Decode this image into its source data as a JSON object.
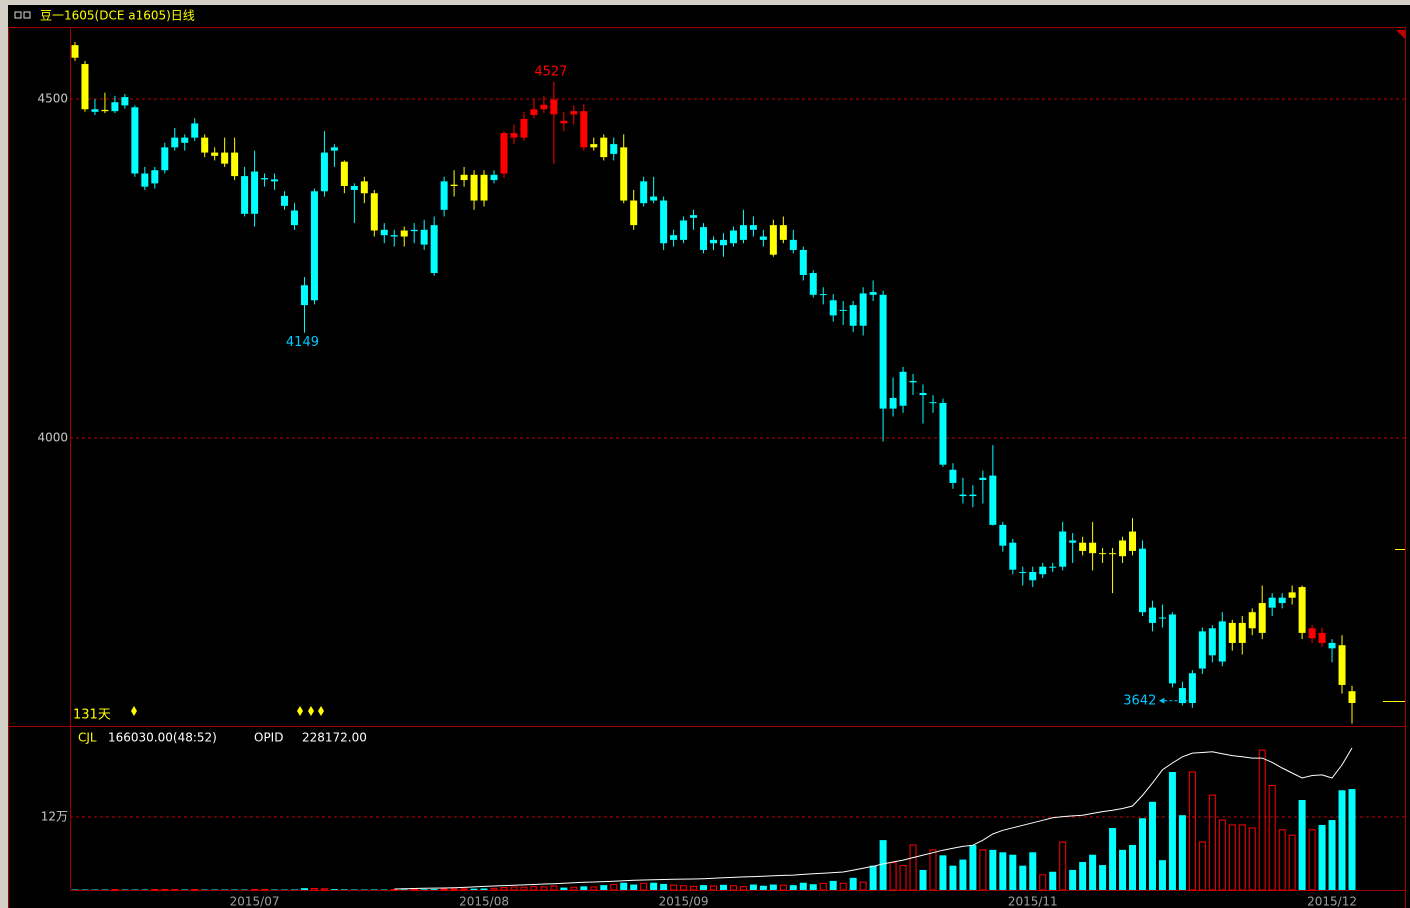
{
  "chart_data": {
    "type": "candlestick",
    "title": "豆一1605(DCE a1605)日线",
    "log_scale": true,
    "grid": true,
    "grid_color": "#c00000",
    "ylim": [
      3619,
      4614
    ],
    "yticks": [
      4000,
      4500
    ],
    "categories": [
      null,
      null,
      null,
      null,
      null,
      null,
      null,
      null,
      null,
      null,
      null,
      null,
      null,
      null,
      null,
      null,
      null,
      null,
      "2015/07",
      null,
      null,
      null,
      null,
      null,
      null,
      null,
      null,
      null,
      null,
      null,
      null,
      null,
      null,
      null,
      null,
      null,
      null,
      null,
      null,
      null,
      null,
      "2015/08",
      null,
      null,
      null,
      null,
      null,
      null,
      null,
      null,
      null,
      null,
      null,
      null,
      null,
      null,
      null,
      null,
      null,
      null,
      null,
      "2015/09",
      null,
      null,
      null,
      null,
      null,
      null,
      null,
      null,
      null,
      null,
      null,
      null,
      null,
      null,
      null,
      null,
      null,
      null,
      null,
      null,
      null,
      null,
      null,
      null,
      null,
      null,
      null,
      null,
      null,
      null,
      null,
      null,
      null,
      null,
      "2015/11",
      null,
      null,
      null,
      null,
      null,
      null,
      null,
      null,
      null,
      null,
      null,
      null,
      null,
      null,
      null,
      null,
      null,
      null,
      null,
      null,
      null,
      null,
      null,
      null,
      null,
      null,
      null,
      null,
      null,
      "2015/12"
    ],
    "candles": [
      [
        4585,
        4590,
        4560,
        4565
      ],
      [
        4555,
        4560,
        4480,
        4484
      ],
      [
        4484,
        4500,
        4475,
        4480
      ],
      [
        4483,
        4510,
        4478,
        4481
      ],
      [
        4481,
        4505,
        4478,
        4495
      ],
      [
        4503,
        4508,
        4485,
        4490
      ],
      [
        4487,
        4490,
        4380,
        4385
      ],
      [
        4385,
        4395,
        4360,
        4365
      ],
      [
        4370,
        4395,
        4362,
        4390
      ],
      [
        4390,
        4432,
        4385,
        4425
      ],
      [
        4425,
        4455,
        4420,
        4440
      ],
      [
        4440,
        4445,
        4420,
        4432
      ],
      [
        4440,
        4470,
        4435,
        4462
      ],
      [
        4440,
        4445,
        4410,
        4417
      ],
      [
        4417,
        4425,
        4405,
        4412
      ],
      [
        4417,
        4440,
        4395,
        4400
      ],
      [
        4417,
        4440,
        4375,
        4381
      ],
      [
        4381,
        4395,
        4320,
        4324
      ],
      [
        4324,
        4420,
        4305,
        4388
      ],
      [
        4376,
        4385,
        4365,
        4378
      ],
      [
        4376,
        4385,
        4360,
        4373
      ],
      [
        4351,
        4358,
        4330,
        4336
      ],
      [
        4329,
        4340,
        4300,
        4307
      ],
      [
        4218,
        4230,
        4149,
        4189
      ],
      [
        4196,
        4362,
        4190,
        4358
      ],
      [
        4358,
        4450,
        4350,
        4417
      ],
      [
        4425,
        4430,
        4395,
        4420
      ],
      [
        4403,
        4405,
        4355,
        4366
      ],
      [
        4366,
        4370,
        4310,
        4360
      ],
      [
        4373,
        4380,
        4340,
        4355
      ],
      [
        4355,
        4360,
        4290,
        4299
      ],
      [
        4300,
        4310,
        4280,
        4292
      ],
      [
        4290,
        4300,
        4275,
        4292
      ],
      [
        4299,
        4305,
        4275,
        4290
      ],
      [
        4298,
        4310,
        4280,
        4300
      ],
      [
        4300,
        4315,
        4270,
        4278
      ],
      [
        4307,
        4320,
        4232,
        4236
      ],
      [
        4330,
        4380,
        4320,
        4373
      ],
      [
        4366,
        4390,
        4350,
        4368
      ],
      [
        4375,
        4395,
        4365,
        4383
      ],
      [
        4383,
        4390,
        4330,
        4344
      ],
      [
        4383,
        4390,
        4335,
        4344
      ],
      [
        4375,
        4390,
        4370,
        4383
      ],
      [
        4385,
        4450,
        4378,
        4447
      ],
      [
        4440,
        4460,
        4430,
        4447
      ],
      [
        4440,
        4480,
        4435,
        4469
      ],
      [
        4475,
        4500,
        4470,
        4484
      ],
      [
        4484,
        4505,
        4478,
        4491
      ],
      [
        4476,
        4527,
        4400,
        4499
      ],
      [
        4466,
        4480,
        4450,
        4462
      ],
      [
        4476,
        4490,
        4460,
        4481
      ],
      [
        4481,
        4492,
        4420,
        4425
      ],
      [
        4425,
        4440,
        4420,
        4430
      ],
      [
        4440,
        4445,
        4405,
        4410
      ],
      [
        4415,
        4440,
        4405,
        4430
      ],
      [
        4425,
        4445,
        4340,
        4344
      ],
      [
        4344,
        4360,
        4300,
        4307
      ],
      [
        4340,
        4380,
        4335,
        4373
      ],
      [
        4350,
        4380,
        4340,
        4344
      ],
      [
        4344,
        4350,
        4270,
        4280
      ],
      [
        4285,
        4300,
        4275,
        4292
      ],
      [
        4285,
        4320,
        4280,
        4314
      ],
      [
        4318,
        4330,
        4300,
        4322
      ],
      [
        4304,
        4310,
        4265,
        4270
      ],
      [
        4280,
        4290,
        4270,
        4285
      ],
      [
        4285,
        4295,
        4260,
        4277
      ],
      [
        4280,
        4305,
        4275,
        4299
      ],
      [
        4285,
        4330,
        4280,
        4307
      ],
      [
        4307,
        4320,
        4290,
        4300
      ],
      [
        4290,
        4300,
        4275,
        4285
      ],
      [
        4307,
        4315,
        4260,
        4263
      ],
      [
        4285,
        4320,
        4280,
        4307
      ],
      [
        4285,
        4300,
        4265,
        4270
      ],
      [
        4270,
        4275,
        4225,
        4233
      ],
      [
        4236,
        4240,
        4200,
        4204
      ],
      [
        4204,
        4215,
        4190,
        4205
      ],
      [
        4196,
        4205,
        4165,
        4174
      ],
      [
        4181,
        4195,
        4160,
        4182
      ],
      [
        4189,
        4195,
        4150,
        4159
      ],
      [
        4159,
        4215,
        4145,
        4206
      ],
      [
        4208,
        4225,
        4195,
        4204
      ],
      [
        4204,
        4210,
        3995,
        4041
      ],
      [
        4041,
        4085,
        4030,
        4056
      ],
      [
        4045,
        4100,
        4035,
        4093
      ],
      [
        4078,
        4090,
        4060,
        4080
      ],
      [
        4063,
        4075,
        4020,
        4060
      ],
      [
        4049,
        4060,
        4035,
        4050
      ],
      [
        4049,
        4055,
        3960,
        3963
      ],
      [
        3956,
        3965,
        3930,
        3938
      ],
      [
        3922,
        3945,
        3910,
        3920
      ],
      [
        3922,
        3935,
        3905,
        3920
      ],
      [
        3942,
        3955,
        3910,
        3945
      ],
      [
        3948,
        3990,
        3880,
        3881
      ],
      [
        3881,
        3885,
        3845,
        3853
      ],
      [
        3857,
        3862,
        3815,
        3821
      ],
      [
        3818,
        3825,
        3800,
        3818
      ],
      [
        3818,
        3825,
        3798,
        3807
      ],
      [
        3815,
        3830,
        3810,
        3825
      ],
      [
        3825,
        3830,
        3818,
        3825
      ],
      [
        3825,
        3885,
        3820,
        3872
      ],
      [
        3860,
        3870,
        3830,
        3857
      ],
      [
        3857,
        3865,
        3840,
        3846
      ],
      [
        3857,
        3885,
        3820,
        3843
      ],
      [
        3843,
        3850,
        3830,
        3843
      ],
      [
        3843,
        3850,
        3790,
        3843
      ],
      [
        3860,
        3865,
        3830,
        3839
      ],
      [
        3872,
        3890,
        3840,
        3846
      ],
      [
        3849,
        3860,
        3760,
        3765
      ],
      [
        3771,
        3780,
        3740,
        3751
      ],
      [
        3758,
        3775,
        3745,
        3758
      ],
      [
        3762,
        3765,
        3668,
        3673
      ],
      [
        3667,
        3675,
        3645,
        3648
      ],
      [
        3648,
        3690,
        3642,
        3686
      ],
      [
        3692,
        3745,
        3685,
        3740
      ],
      [
        3709,
        3748,
        3700,
        3744
      ],
      [
        3701,
        3765,
        3695,
        3753
      ],
      [
        3725,
        3755,
        3715,
        3751
      ],
      [
        3725,
        3760,
        3710,
        3751
      ],
      [
        3744,
        3770,
        3735,
        3765
      ],
      [
        3738,
        3800,
        3730,
        3777
      ],
      [
        3771,
        3790,
        3760,
        3784
      ],
      [
        3777,
        3790,
        3770,
        3784
      ],
      [
        3784,
        3800,
        3775,
        3791
      ],
      [
        3798,
        3800,
        3730,
        3738
      ],
      [
        3731,
        3748,
        3725,
        3744
      ],
      [
        3738,
        3745,
        3720,
        3725
      ],
      [
        3725,
        3730,
        3700,
        3718
      ],
      [
        3722,
        3735,
        3660,
        3671
      ],
      [
        3663,
        3670,
        3622,
        3648
      ]
    ],
    "candle_colors": [
      "#ffff00",
      "#ffff00",
      "#00ffff",
      "#ffff00",
      "#00ffff",
      "#00ffff",
      "#00ffff",
      "#00ffff",
      "#00ffff",
      "#00ffff",
      "#00ffff",
      "#00ffff",
      "#00ffff",
      "#ffff00",
      "#ffff00",
      "#ffff00",
      "#ffff00",
      "#00ffff",
      "#00ffff",
      "#00ffff",
      "#00ffff",
      "#00ffff",
      "#00ffff",
      "#00ffff",
      "#00ffff",
      "#00ffff",
      "#00ffff",
      "#ffff00",
      "#00ffff",
      "#ffff00",
      "#ffff00",
      "#00ffff",
      "#00ffff",
      "#ffff00",
      "#00ffff",
      "#00ffff",
      "#00ffff",
      "#00ffff",
      "#ffff00",
      "#ffff00",
      "#ffff00",
      "#ffff00",
      "#00ffff",
      "#ff0000",
      "#ff0000",
      "#ff0000",
      "#ff0000",
      "#ff0000",
      "#ff0000",
      "#ff0000",
      "#ff0000",
      "#ff0000",
      "#ffff00",
      "#ffff00",
      "#00ffff",
      "#ffff00",
      "#ffff00",
      "#00ffff",
      "#00ffff",
      "#00ffff",
      "#00ffff",
      "#00ffff",
      "#00ffff",
      "#00ffff",
      "#00ffff",
      "#00ffff",
      "#00ffff",
      "#00ffff",
      "#00ffff",
      "#00ffff",
      "#ffff00",
      "#ffff00",
      "#00ffff",
      "#00ffff",
      "#00ffff",
      "#00ffff",
      "#00ffff",
      "#00ffff",
      "#00ffff",
      "#00ffff",
      "#00ffff",
      "#00ffff",
      "#00ffff",
      "#00ffff",
      "#00ffff",
      "#00ffff",
      "#00ffff",
      "#00ffff",
      "#00ffff",
      "#00ffff",
      "#00ffff",
      "#00ffff",
      "#00ffff",
      "#00ffff",
      "#00ffff",
      "#00ffff",
      "#00ffff",
      "#00ffff",
      "#00ffff",
      "#00ffff",
      "#00ffff",
      "#ffff00",
      "#ffff00",
      "#ffff00",
      "#ffff00",
      "#ffff00",
      "#ffff00",
      "#00ffff",
      "#00ffff",
      "#00ffff",
      "#00ffff",
      "#00ffff",
      "#00ffff",
      "#00ffff",
      "#00ffff",
      "#00ffff",
      "#ffff00",
      "#ffff00",
      "#ffff00",
      "#ffff00",
      "#00ffff",
      "#00ffff",
      "#ffff00",
      "#ffff00",
      "#ff0000",
      "#ff0000",
      "#00ffff",
      "#ffff00",
      "#ffff00"
    ],
    "high_label": 4527,
    "high_label_color": "#ff0000",
    "low_labels": [
      4149,
      3642
    ],
    "low_label_color": "#00c8ff",
    "days_label": "131天",
    "volume": {
      "label": "CJL",
      "readout": "166030.00(48:52)",
      "ylim": [
        0,
        268000
      ],
      "yticks": [
        {
          "value": 120000,
          "label": "12万"
        }
      ],
      "up_color": "#ff0000",
      "down_color": "#00ffff",
      "values": [
        300,
        200,
        200,
        300,
        200,
        200,
        400,
        300,
        200,
        200,
        300,
        200,
        200,
        300,
        200,
        300,
        400,
        500,
        600,
        300,
        400,
        300,
        900,
        3000,
        2500,
        2000,
        1500,
        1000,
        800,
        600,
        900,
        500,
        600,
        800,
        1000,
        1200,
        1500,
        1600,
        1800,
        2000,
        2200,
        2500,
        2800,
        4000,
        5000,
        4500,
        5500,
        5000,
        6500,
        4000,
        4500,
        6000,
        5000,
        8000,
        9000,
        12000,
        9000,
        11000,
        12000,
        10000,
        8000,
        7000,
        6000,
        8000,
        6500,
        8500,
        7000,
        5500,
        9000,
        7000,
        9000,
        8000,
        8000,
        12000,
        9500,
        11000,
        15000,
        11000,
        20000,
        13000,
        40000,
        82000,
        45000,
        40000,
        74000,
        33000,
        66000,
        57000,
        40000,
        50000,
        74000,
        66000,
        66000,
        62000,
        58000,
        40000,
        62000,
        25000,
        30000,
        79000,
        33000,
        46000,
        58000,
        41000,
        102000,
        66000,
        74000,
        118000,
        145000,
        49000,
        194000,
        123000,
        194000,
        79000,
        156000,
        115000,
        107000,
        107000,
        102000,
        230000,
        172000,
        99000,
        90000,
        148000,
        99000,
        107000,
        115000,
        164000,
        166030
      ]
    },
    "open_interest": {
      "label": "OPID",
      "readout": "228172.00",
      "y2lim": [
        0,
        261900
      ],
      "color": "#ffffff",
      "values": [
        null,
        null,
        null,
        null,
        null,
        null,
        null,
        null,
        null,
        null,
        null,
        null,
        null,
        null,
        null,
        null,
        null,
        null,
        null,
        null,
        null,
        null,
        null,
        null,
        null,
        null,
        null,
        null,
        null,
        null,
        null,
        null,
        1600,
        2000,
        2400,
        2800,
        3000,
        3200,
        3600,
        4200,
        5000,
        5800,
        6400,
        7000,
        7600,
        8200,
        8800,
        9600,
        10200,
        11000,
        11800,
        12400,
        12900,
        13500,
        14200,
        15000,
        15600,
        16000,
        16400,
        16800,
        17200,
        17500,
        17700,
        18200,
        18900,
        19600,
        20300,
        21000,
        21600,
        22200,
        22800,
        23400,
        24000,
        25000,
        26000,
        27000,
        28000,
        29000,
        32000,
        35000,
        38000,
        42000,
        45000,
        48000,
        52000,
        56000,
        60000,
        64000,
        67000,
        70000,
        72000,
        80000,
        90000,
        96000,
        100000,
        104000,
        108000,
        112000,
        116000,
        118000,
        119000,
        120000,
        123000,
        126000,
        128000,
        131000,
        135000,
        152000,
        172000,
        193000,
        204000,
        214000,
        220000,
        221000,
        222000,
        219000,
        216000,
        214000,
        212000,
        212000,
        205000,
        196000,
        188000,
        180000,
        184000,
        185000,
        180000,
        201000,
        228172
      ]
    }
  }
}
